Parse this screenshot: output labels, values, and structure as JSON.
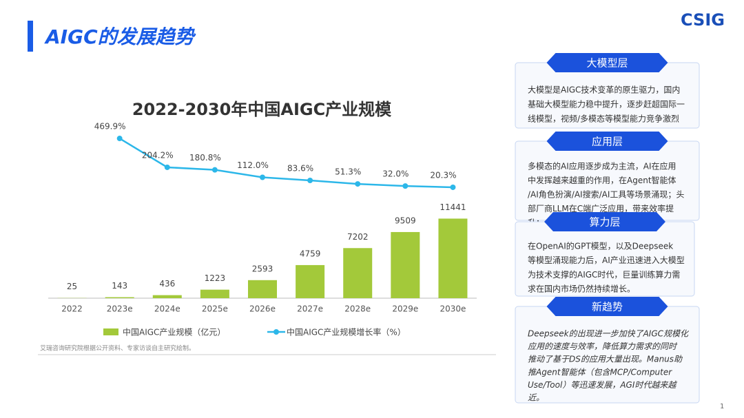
{
  "header": {
    "title": "AIGC的发展趋势",
    "logo": "CSIG",
    "page": "1"
  },
  "chart_data": {
    "type": "bar-line",
    "title": "2022-2030年中国AIGC产业规模",
    "categories": [
      "2022",
      "2023e",
      "2024e",
      "2025e",
      "2026e",
      "2027e",
      "2028e",
      "2029e",
      "2030e"
    ],
    "series": [
      {
        "name": "中国AIGC产业规模（亿元）",
        "type": "bar",
        "color": "#a3c93a",
        "values": [
          25,
          143,
          436,
          1223,
          2593,
          4759,
          7202,
          9509,
          11441
        ]
      },
      {
        "name": "中国AIGC产业规模增长率（%）",
        "type": "line",
        "axis": "y2",
        "color": "#2cb7e9",
        "values": [
          null,
          469.9,
          204.2,
          180.8,
          112.0,
          83.6,
          51.3,
          32.0,
          20.3
        ],
        "value_labels": [
          null,
          "469.9%",
          "204.2%",
          "180.8%",
          "112.0%",
          "83.6%",
          "51.3%",
          "32.0%",
          "20.3%"
        ]
      }
    ],
    "ylim": [
      0,
      30000
    ],
    "y2lim": [
      -1000,
      920
    ],
    "legend": "bottom",
    "source": "艾瑞咨询研究院根据公开资料、专家访谈自主研究绘制。"
  },
  "panels": [
    {
      "title": "大模型层",
      "lines": [
        "大模型是AIGC技术变革的原生驱力，国内",
        "基础大模型能力稳中提升，逐步赶超国际一",
        "线模型，视频/多模态等模型能力竞争激烈"
      ]
    },
    {
      "title": "应用层",
      "lines": [
        "多模态的AI应用逐步成为主流，AI在应用",
        "中发挥越来越重的作用，在Agent智能体",
        "/AI角色扮演/AI搜索/AI工具等场景涌现；头",
        "部厂商LLM在C端广泛应用，带来效率提",
        "升；"
      ]
    },
    {
      "title": "算力层",
      "lines": [
        "在OpenAI的GPT模型，以及Deepseek",
        "等模型涌现能力后，AI产业迅速进入大模型",
        "为技术支撑的AIGC时代，巨量训练算力需",
        "求在国内市场仍然持续增长。"
      ]
    },
    {
      "title": "新趋势",
      "lines": [
        "Deepseek的出现进一步加快了AIGC规模化",
        "应用的速度与效率，降低算力需求的同时",
        "推动了基于DS的应用大量出现。Manus助",
        "推Agent智能体（包含MCP/Computer",
        "Use/Tool）等迅速发展，AGI时代越来越",
        "近。"
      ]
    }
  ]
}
